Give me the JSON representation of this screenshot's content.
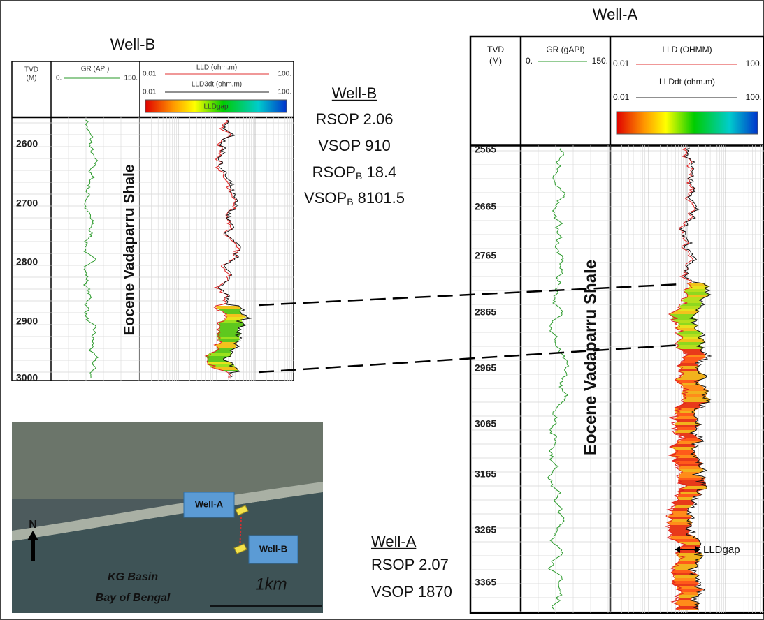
{
  "well_b": {
    "title": "Well-B",
    "tvd": [
      "TVD",
      "(M)"
    ],
    "gr": {
      "name": "GR (API)",
      "min": "0.",
      "max": "150."
    },
    "lld": {
      "name": "LLD (ohm.m)",
      "min": "0.01",
      "max": "100."
    },
    "lld_dt": {
      "name": "LLD3dt (ohm.m)",
      "min": "0.01",
      "max": "100."
    },
    "gap": "LLDgap",
    "depths": [
      2600,
      2700,
      2800,
      2900,
      3000
    ],
    "formation": "Eocene Vadaparru Shale"
  },
  "well_b_summary": {
    "title": "Well-B",
    "lines": [
      {
        "label": "RSOP",
        "value": 2.06
      },
      {
        "label": "VSOP",
        "value": 910
      },
      {
        "label": "RSOP",
        "sub": "B",
        "value": 18.4
      },
      {
        "label": "VSOP",
        "sub": "B",
        "value": 8101.5
      }
    ]
  },
  "map": {
    "north": "N",
    "wells": [
      "Well-A",
      "Well-B"
    ],
    "basin": "KG Basin",
    "sea": "Bay of Bengal",
    "scale": "1km"
  },
  "well_a": {
    "title": "Well-A",
    "tvd": [
      "TVD",
      "(M)"
    ],
    "gr": {
      "name": "GR (gAPI)",
      "min": "0.",
      "max": "150."
    },
    "lld": {
      "name": "LLD (OHMM)",
      "min": "0.01",
      "max": "100."
    },
    "lld_dt": {
      "name": "LLDdt (ohm.m)",
      "min": "0.01",
      "max": "100."
    },
    "depths": [
      2565,
      2665,
      2765,
      2865,
      2965,
      3065,
      3165,
      3265,
      3365
    ],
    "formation": "Eocene Vadaparru Shale",
    "gap_note": "LLDgap"
  },
  "well_a_summary": {
    "title": "Well-A",
    "lines": [
      {
        "label": "RSOP",
        "value": 2.07
      },
      {
        "label": "VSOP",
        "value": 1870
      }
    ]
  }
}
